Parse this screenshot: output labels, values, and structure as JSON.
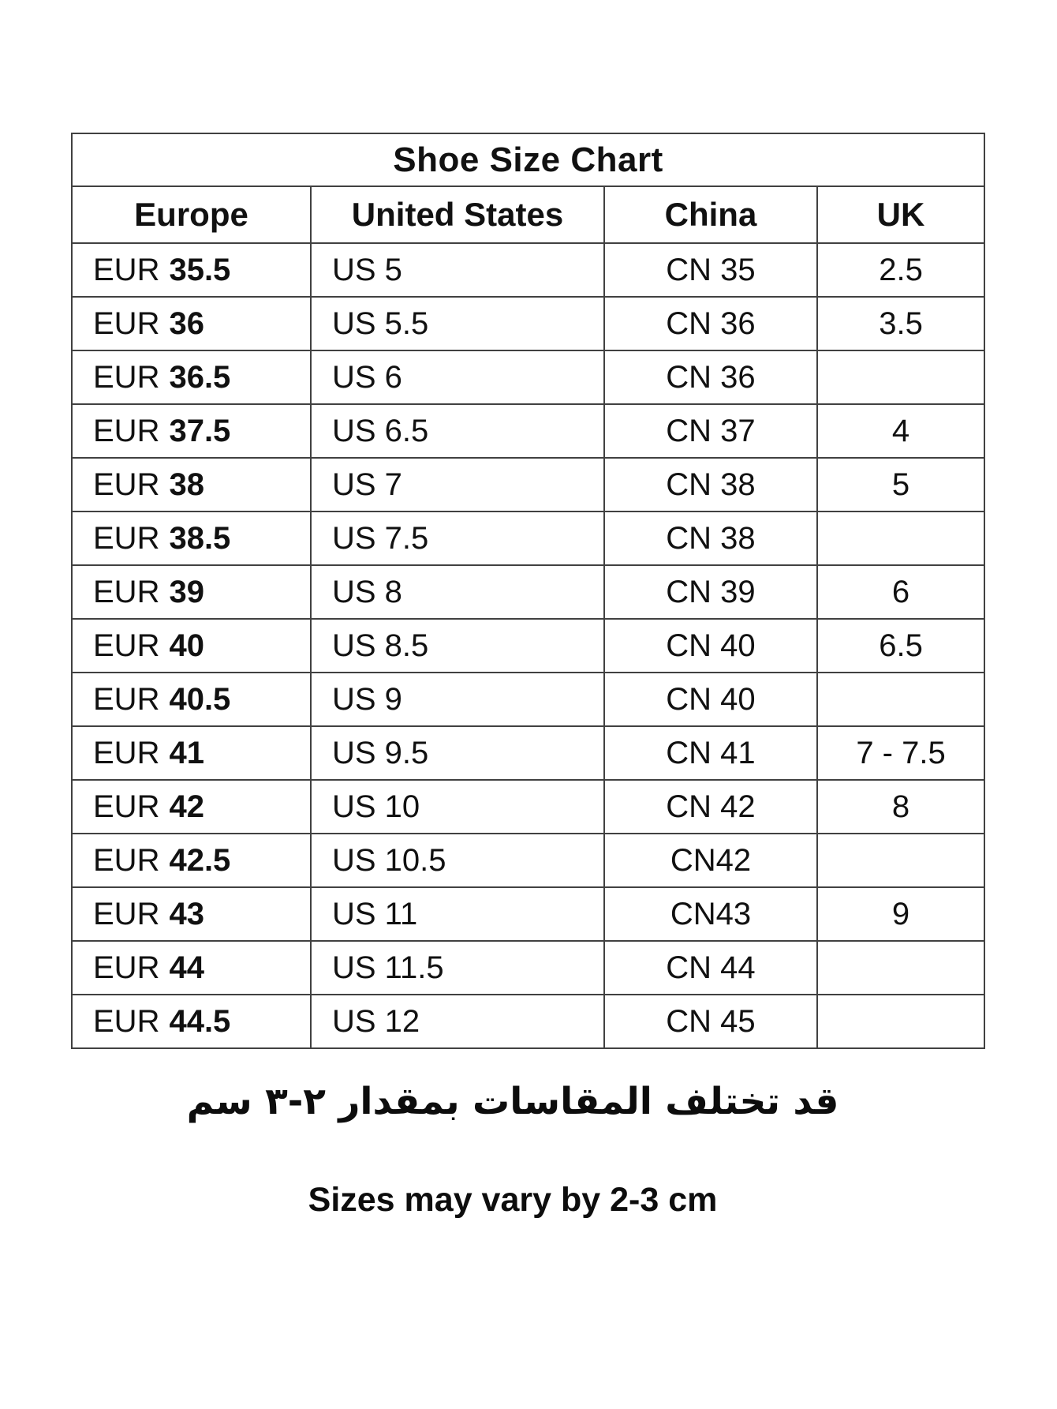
{
  "title": "Shoe Size Chart",
  "columns": [
    "Europe",
    "United States",
    "China",
    "UK"
  ],
  "rows": [
    {
      "eur": "EUR",
      "eur_size": "35.5",
      "us": "US 5",
      "cn": "CN 35",
      "uk": "2.5"
    },
    {
      "eur": "EUR",
      "eur_size": "36",
      "us": "US 5.5",
      "cn": "CN 36",
      "uk": "3.5"
    },
    {
      "eur": "EUR",
      "eur_size": "36.5",
      "us": "US 6",
      "cn": "CN 36",
      "uk": ""
    },
    {
      "eur": "EUR",
      "eur_size": "37.5",
      "us": "US 6.5",
      "cn": "CN 37",
      "uk": "4"
    },
    {
      "eur": "EUR",
      "eur_size": "38",
      "us": "US 7",
      "cn": "CN 38",
      "uk": "5"
    },
    {
      "eur": "EUR",
      "eur_size": "38.5",
      "us": "US 7.5",
      "cn": "CN 38",
      "uk": ""
    },
    {
      "eur": "EUR",
      "eur_size": "39",
      "us": "US 8",
      "cn": "CN 39",
      "uk": "6"
    },
    {
      "eur": "EUR",
      "eur_size": "40",
      "us": "US 8.5",
      "cn": "CN 40",
      "uk": "6.5"
    },
    {
      "eur": "EUR",
      "eur_size": "40.5",
      "us": "US 9",
      "cn": "CN 40",
      "uk": ""
    },
    {
      "eur": "EUR",
      "eur_size": "41",
      "us": "US 9.5",
      "cn": "CN 41",
      "uk": "7 - 7.5"
    },
    {
      "eur": "EUR",
      "eur_size": "42",
      "us": "US 10",
      "cn": "CN 42",
      "uk": "8"
    },
    {
      "eur": "EUR",
      "eur_size": "42.5",
      "us": "US 10.5",
      "cn": "CN42",
      "uk": ""
    },
    {
      "eur": "EUR",
      "eur_size": "43",
      "us": "US 11",
      "cn": "CN43",
      "uk": "9"
    },
    {
      "eur": "EUR",
      "eur_size": "44",
      "us": "US 11.5",
      "cn": "CN 44",
      "uk": ""
    },
    {
      "eur": "EUR",
      "eur_size": "44.5",
      "us": "US 12",
      "cn": "CN 45",
      "uk": ""
    }
  ],
  "notes": {
    "arabic": "قد تختلف المقاسات بمقدار ٢-٣ سم",
    "english": "Sizes may vary by 2-3 cm"
  }
}
